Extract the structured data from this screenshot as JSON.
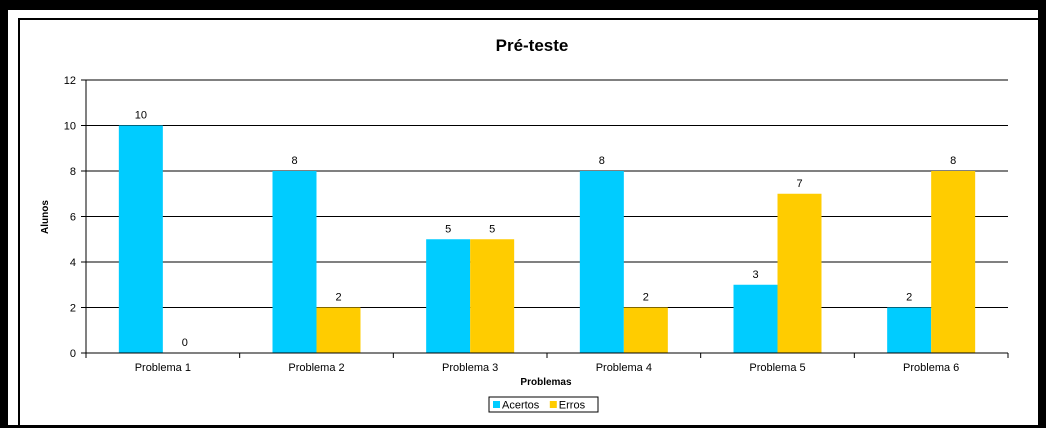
{
  "chart_data": {
    "type": "bar",
    "title": "Pré-teste",
    "xlabel": "Problemas",
    "ylabel": "Alunos",
    "categories": [
      "Problema 1",
      "Problema 2",
      "Problema 3",
      "Problema 4",
      "Problema 5",
      "Problema 6"
    ],
    "series": [
      {
        "name": "Acertos",
        "color": "#00CCFF",
        "values": [
          10,
          8,
          5,
          8,
          3,
          2
        ]
      },
      {
        "name": "Erros",
        "color": "#FFCC00",
        "values": [
          0,
          2,
          5,
          2,
          7,
          8
        ]
      }
    ],
    "ylim": [
      0,
      12
    ],
    "yticks": [
      0,
      2,
      4,
      6,
      8,
      10,
      12
    ],
    "grid": true,
    "legend_position": "bottom"
  }
}
